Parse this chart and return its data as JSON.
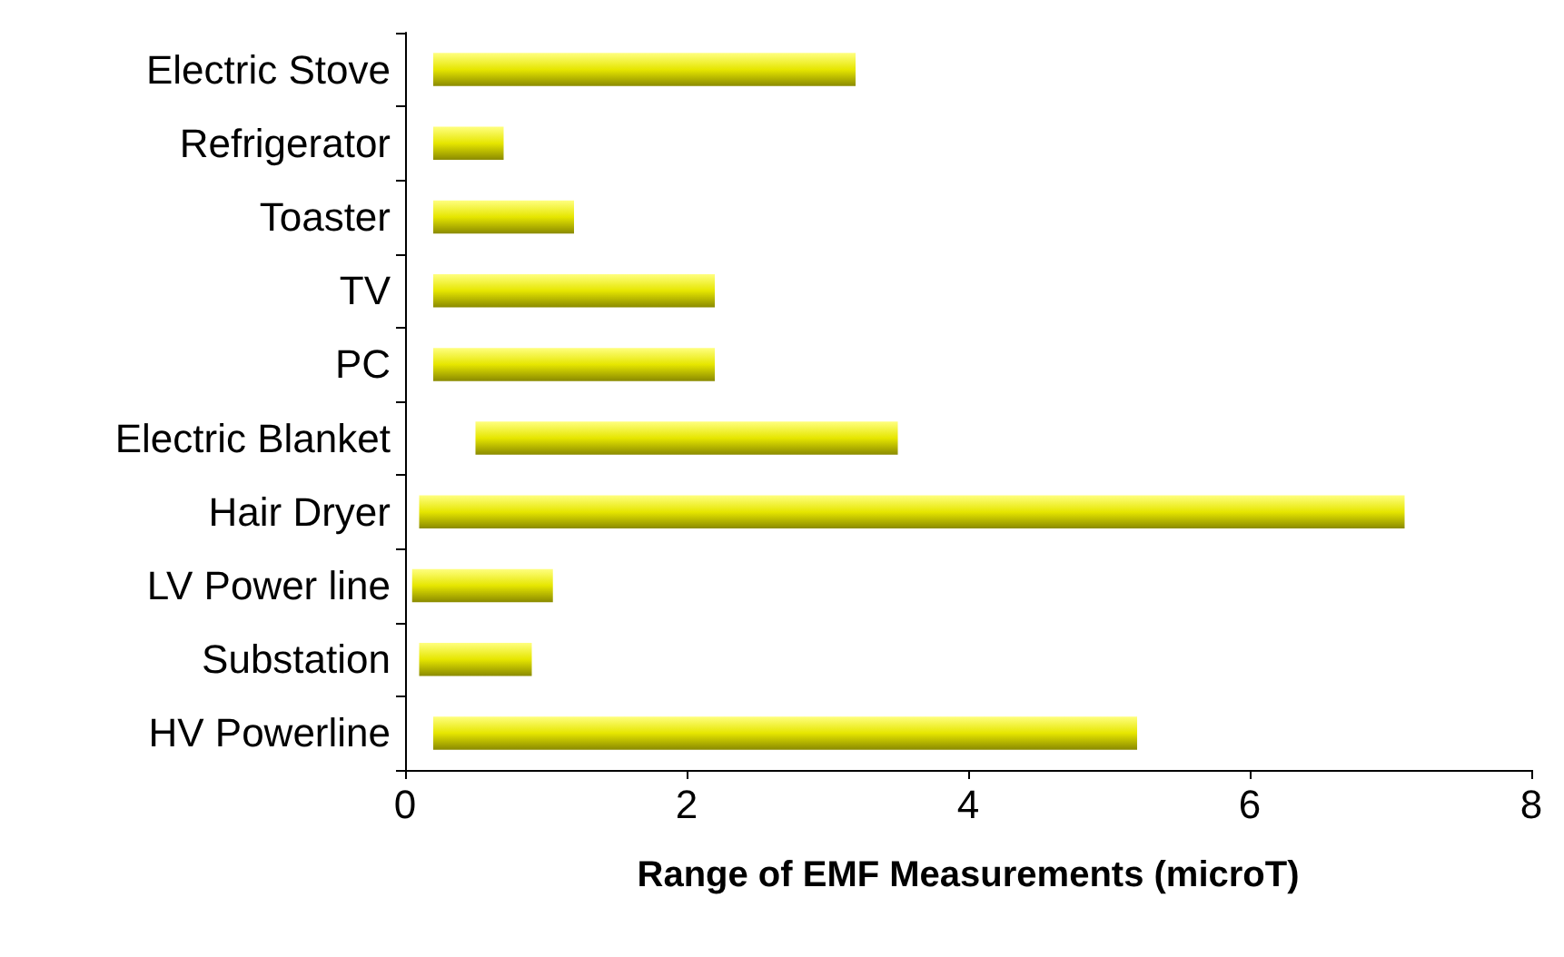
{
  "chart_data": {
    "type": "bar",
    "orientation": "horizontal",
    "xlabel": "Range of EMF Measurements (microT)",
    "categories": [
      "Electric Stove",
      "Refrigerator",
      "Toaster",
      "TV",
      "PC",
      "Electric Blanket",
      "Hair Dryer",
      "LV Power line",
      "Substation",
      "HV Powerline"
    ],
    "base": [
      0.2,
      0.2,
      0.2,
      0.2,
      0.2,
      0.5,
      0.1,
      0.05,
      0.1,
      0.2
    ],
    "values": [
      3.0,
      0.5,
      1.0,
      2.0,
      2.0,
      3.0,
      7.0,
      1.0,
      0.8,
      5.0
    ],
    "color": "#e6e600",
    "xlim": [
      0,
      8
    ],
    "xticks": [
      0,
      2,
      4,
      6,
      8
    ],
    "grid": false
  }
}
